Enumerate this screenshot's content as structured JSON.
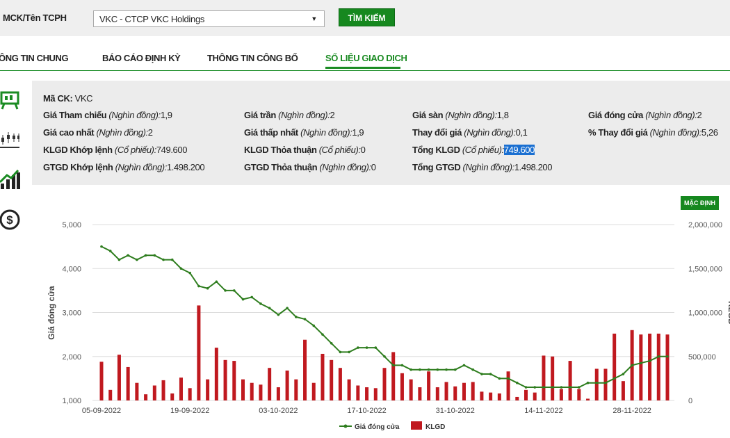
{
  "search": {
    "label": "MCK/Tên TCPH",
    "selected": "VKC - CTCP VKC Holdings",
    "button": "TÌM KIẾM"
  },
  "tabs": [
    {
      "label": "ÔNG TIN CHUNG"
    },
    {
      "label": "BÁO CÁO ĐỊNH KỲ"
    },
    {
      "label": "THÔNG TIN CÔNG BỐ"
    },
    {
      "label": "SỐ LIỆU GIAO DỊCH",
      "active": true
    }
  ],
  "sidebar_icons": [
    "chart-board-icon",
    "candlestick-icon",
    "bar-trend-icon",
    "dollar-coin-icon"
  ],
  "info": {
    "ma_ck_label": "Mã CK:",
    "ma_ck_value": "VKC",
    "rows": [
      [
        {
          "label": "Giá Tham chiếu",
          "unit": "(Nghìn đồng):",
          "value": "1,9"
        },
        {
          "label": "Giá trần",
          "unit": "(Nghìn đồng):",
          "value": "2"
        },
        {
          "label": "Giá sàn",
          "unit": "(Nghìn đồng):",
          "value": "1,8"
        },
        {
          "label": "Giá đóng cửa",
          "unit": "(Nghìn đồng):",
          "value": "2"
        }
      ],
      [
        {
          "label": "Giá cao nhất",
          "unit": "(Nghìn đồng):",
          "value": "2"
        },
        {
          "label": "Giá thấp nhất",
          "unit": "(Nghìn đồng):",
          "value": "1,9"
        },
        {
          "label": "Thay đổi giá",
          "unit": "(Nghìn đồng):",
          "value": "0,1"
        },
        {
          "label": "% Thay đổi giá",
          "unit": "(Nghìn đồng):",
          "value": "5,26"
        }
      ],
      [
        {
          "label": "KLGD Khớp lệnh",
          "unit": "(Cổ phiếu):",
          "value": "749.600"
        },
        {
          "label": "KLGD Thỏa thuận",
          "unit": "(Cổ phiếu):",
          "value": "0"
        },
        {
          "label": "Tổng KLGD",
          "unit": "(Cổ phiếu):",
          "value": "749.600",
          "highlight": true
        },
        null
      ],
      [
        {
          "label": "GTGD Khớp lệnh",
          "unit": "(Nghìn đồng):",
          "value": "1.498.200"
        },
        {
          "label": "GTGD Thỏa thuận",
          "unit": "(Nghìn đồng):",
          "value": "0"
        },
        {
          "label": "Tổng GTGD",
          "unit": "(Nghìn đồng):",
          "value": "1.498.200"
        },
        null
      ]
    ]
  },
  "chart_controls": {
    "default_button": "MẶC ĐỊNH"
  },
  "chart_data": {
    "type": "line+bar",
    "left_axis": {
      "label": "Giá đóng cửa",
      "ticks": [
        "1,000",
        "2,000",
        "3,000",
        "4,000",
        "5,000"
      ],
      "range": [
        1000,
        5000
      ]
    },
    "right_axis": {
      "label": "KLGD",
      "ticks": [
        "0",
        "500,000",
        "1,000,000",
        "1,500,000",
        "2,000,000"
      ],
      "range": [
        0,
        2000000
      ]
    },
    "x_ticks": [
      {
        "label": "05-09-2022",
        "index": 0
      },
      {
        "label": "19-09-2022",
        "index": 10
      },
      {
        "label": "03-10-2022",
        "index": 20
      },
      {
        "label": "17-10-2022",
        "index": 30
      },
      {
        "label": "31-10-2022",
        "index": 40
      },
      {
        "label": "14-11-2022",
        "index": 50
      },
      {
        "label": "28-11-2022",
        "index": 60
      }
    ],
    "legend": [
      {
        "name": "Giá đóng cửa",
        "color": "#2e7d1e"
      },
      {
        "name": "KLGD",
        "color": "#c0191f"
      }
    ],
    "grid": true,
    "price": [
      4500,
      4400,
      4200,
      4300,
      4200,
      4300,
      4300,
      4200,
      4200,
      4000,
      3900,
      3600,
      3550,
      3700,
      3500,
      3500,
      3300,
      3350,
      3200,
      3100,
      2950,
      3100,
      2900,
      2850,
      2700,
      2500,
      2300,
      2100,
      2100,
      2200,
      2200,
      2200,
      2000,
      1800,
      1800,
      1700,
      1700,
      1700,
      1700,
      1700,
      1700,
      1800,
      1700,
      1600,
      1600,
      1500,
      1500,
      1400,
      1300,
      1300,
      1300,
      1300,
      1300,
      1300,
      1300,
      1400,
      1400,
      1400,
      1500,
      1600,
      1800,
      1850,
      1900,
      2000,
      2000
    ],
    "volume": [
      440000,
      120000,
      520000,
      380000,
      200000,
      70000,
      170000,
      230000,
      80000,
      260000,
      140000,
      1080000,
      240000,
      600000,
      460000,
      450000,
      240000,
      200000,
      180000,
      370000,
      150000,
      340000,
      240000,
      690000,
      200000,
      530000,
      460000,
      370000,
      240000,
      170000,
      150000,
      140000,
      370000,
      550000,
      310000,
      240000,
      150000,
      330000,
      150000,
      210000,
      160000,
      200000,
      210000,
      100000,
      90000,
      80000,
      330000,
      40000,
      120000,
      90000,
      510000,
      500000,
      130000,
      450000,
      130000,
      20000,
      360000,
      360000,
      760000,
      220000,
      800000,
      750000,
      760000,
      760000,
      750000
    ],
    "colors": {
      "line": "#2e7d1e",
      "bar": "#c0191f",
      "grid": "#dddddd"
    }
  }
}
